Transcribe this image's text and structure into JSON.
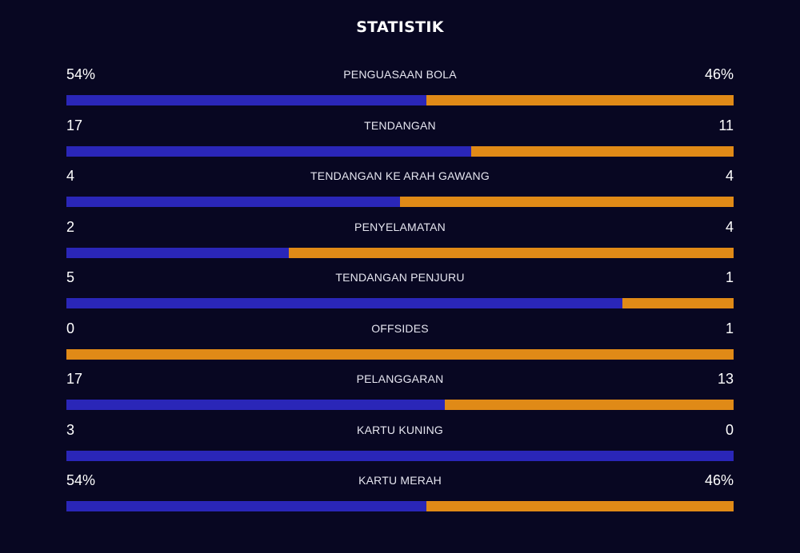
{
  "title": "STATISTIK",
  "colors": {
    "background": "#080722",
    "home_bar": "#2a26b8",
    "away_bar": "#e08a17",
    "text": "#ffffff"
  },
  "stats": [
    {
      "label": "PENGUASAAN BOLA",
      "home": "54%",
      "away": "46%",
      "home_share": 0.54
    },
    {
      "label": "TENDANGAN",
      "home": "17",
      "away": "11",
      "home_share": 0.607
    },
    {
      "label": "TENDANGAN KE ARAH GAWANG",
      "home": "4",
      "away": "4",
      "home_share": 0.5
    },
    {
      "label": "PENYELAMATAN",
      "home": "2",
      "away": "4",
      "home_share": 0.333
    },
    {
      "label": "TENDANGAN PENJURU",
      "home": "5",
      "away": "1",
      "home_share": 0.833
    },
    {
      "label": "OFFSIDES",
      "home": "0",
      "away": "1",
      "home_share": 0.0
    },
    {
      "label": "PELANGGARAN",
      "home": "17",
      "away": "13",
      "home_share": 0.567
    },
    {
      "label": "KARTU KUNING",
      "home": "3",
      "away": "0",
      "home_share": 1.0
    },
    {
      "label": "KARTU MERAH",
      "home": "54%",
      "away": "46%",
      "home_share": 0.54
    }
  ]
}
